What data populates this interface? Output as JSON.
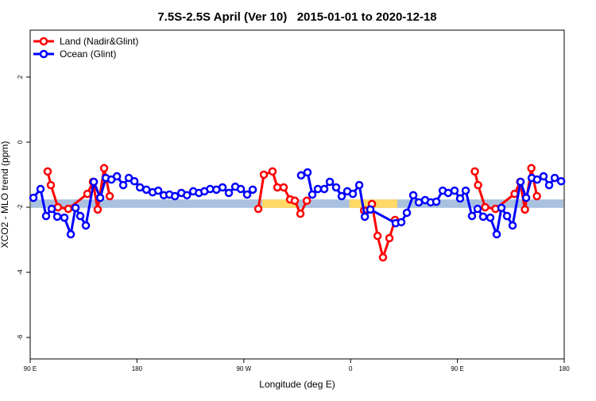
{
  "chart_data": {
    "type": "line",
    "title": "7.5S-2.5S April (Ver 10)   2015-01-01 to 2020-12-18",
    "x_label": "Longitude (deg E)",
    "y_label": "XCO2 - MLO trend (ppm)",
    "xlim": [
      90,
      540
    ],
    "ylim": [
      -6.66,
      3.44
    ],
    "xticks": [
      {
        "value": 90,
        "label": "90 E"
      },
      180,
      {
        "value": 270,
        "label": "90 W"
      },
      {
        "value": 360,
        "label": "0"
      },
      {
        "value": 450,
        "label": "90 E"
      },
      {
        "value": 540,
        "label": "180"
      }
    ],
    "yticks": [
      -6,
      -4,
      -2,
      0,
      2
    ],
    "legend": "top-left",
    "band": {
      "range": [
        -2.02,
        -1.76
      ],
      "color": "#a9c1df",
      "highlights": [
        {
          "from": 285.5,
          "to": 315.7,
          "color": "#ffd966"
        },
        {
          "from": 359,
          "to": 399.4,
          "color": "#ffd966"
        }
      ]
    },
    "series": [
      {
        "name": "Land (Nadir&Glint)",
        "color": "#ff0000",
        "x": [
          104.7,
          107.4,
          113.4,
          122.1,
          138.2,
          142.9,
          146.9,
          152.3,
          157.0,
          null,
          282.2,
          286.9,
          294.2,
          298.3,
          303.6,
          309.0,
          313.0,
          317.7,
          323.1,
          null,
          371.3,
          378.0,
          382.7,
          387.3,
          392.7,
          397.4,
          null,
          464.7,
          467.4,
          473.4,
          482.1,
          498.2,
          502.9,
          506.9,
          512.3,
          517.0
        ],
        "values": [
          -0.9,
          -1.32,
          -2.0,
          -2.05,
          -1.59,
          -1.22,
          -2.07,
          -0.8,
          -1.66,
          null,
          -2.05,
          -1.0,
          -0.9,
          -1.39,
          -1.39,
          -1.76,
          -1.8,
          -2.2,
          -1.8,
          null,
          -2.1,
          -1.9,
          -2.88,
          -3.54,
          -2.95,
          -2.39,
          null,
          -0.9,
          -1.32,
          -2.0,
          -2.05,
          -1.59,
          -1.22,
          -2.07,
          -0.8,
          -1.66
        ]
      },
      {
        "name": "Ocean (Glint)",
        "color": "#0000ff",
        "x": [
          92.7,
          98.7,
          103.4,
          108.1,
          112.8,
          118.8,
          124.2,
          128.2,
          132.2,
          136.9,
          143.6,
          149.0,
          153.7,
          158.4,
          163.1,
          168.4,
          173.1,
          177.8,
          182.5,
          187.9,
          193.2,
          197.9,
          202.6,
          207.3,
          212.0,
          217.4,
          222.1,
          227.4,
          232.2,
          236.8,
          241.6,
          246.9,
          252.1,
          257.4,
          262.8,
          267.5,
          272.8,
          277.5,
          null,
          318.3,
          323.7,
          327.7,
          332.4,
          337.8,
          342.5,
          347.8,
          352.5,
          357.2,
          361.9,
          367.3,
          372.0,
          376.6,
          398.0,
          402.7,
          407.4,
          412.8,
          417.5,
          422.8,
          427.5,
          432.2,
          437.6,
          442.2,
          447.6,
          452.3,
          457.0,
          462.3,
          467.0,
          471.7,
          477.7,
          483.1,
          487.1,
          491.8,
          496.5,
          503.2,
          507.9,
          512.6,
          517.2,
          522.6,
          527.3,
          532.0,
          537.4
        ],
        "values": [
          -1.71,
          -1.44,
          -2.27,
          -2.05,
          -2.29,
          -2.32,
          -2.83,
          -2.02,
          -2.27,
          -2.56,
          -1.22,
          -1.71,
          -1.1,
          -1.15,
          -1.05,
          -1.32,
          -1.1,
          -1.2,
          -1.39,
          -1.46,
          -1.54,
          -1.49,
          -1.63,
          -1.61,
          -1.66,
          -1.56,
          -1.63,
          -1.51,
          -1.56,
          -1.51,
          -1.44,
          -1.46,
          -1.39,
          -1.56,
          -1.37,
          -1.44,
          -1.61,
          -1.46,
          null,
          -1.02,
          -0.93,
          -1.61,
          -1.44,
          -1.44,
          -1.22,
          -1.39,
          -1.66,
          -1.51,
          -1.59,
          -1.32,
          -2.29,
          -2.07,
          -2.49,
          -2.46,
          -2.17,
          -1.63,
          -1.85,
          -1.78,
          -1.85,
          -1.83,
          -1.49,
          -1.56,
          -1.49,
          -1.73,
          -1.49,
          -2.27,
          -2.05,
          -2.29,
          -2.32,
          -2.83,
          -2.02,
          -2.27,
          -2.56,
          -1.22,
          -1.71,
          -1.1,
          -1.15,
          -1.05,
          -1.32,
          -1.1,
          -1.2
        ]
      }
    ]
  }
}
